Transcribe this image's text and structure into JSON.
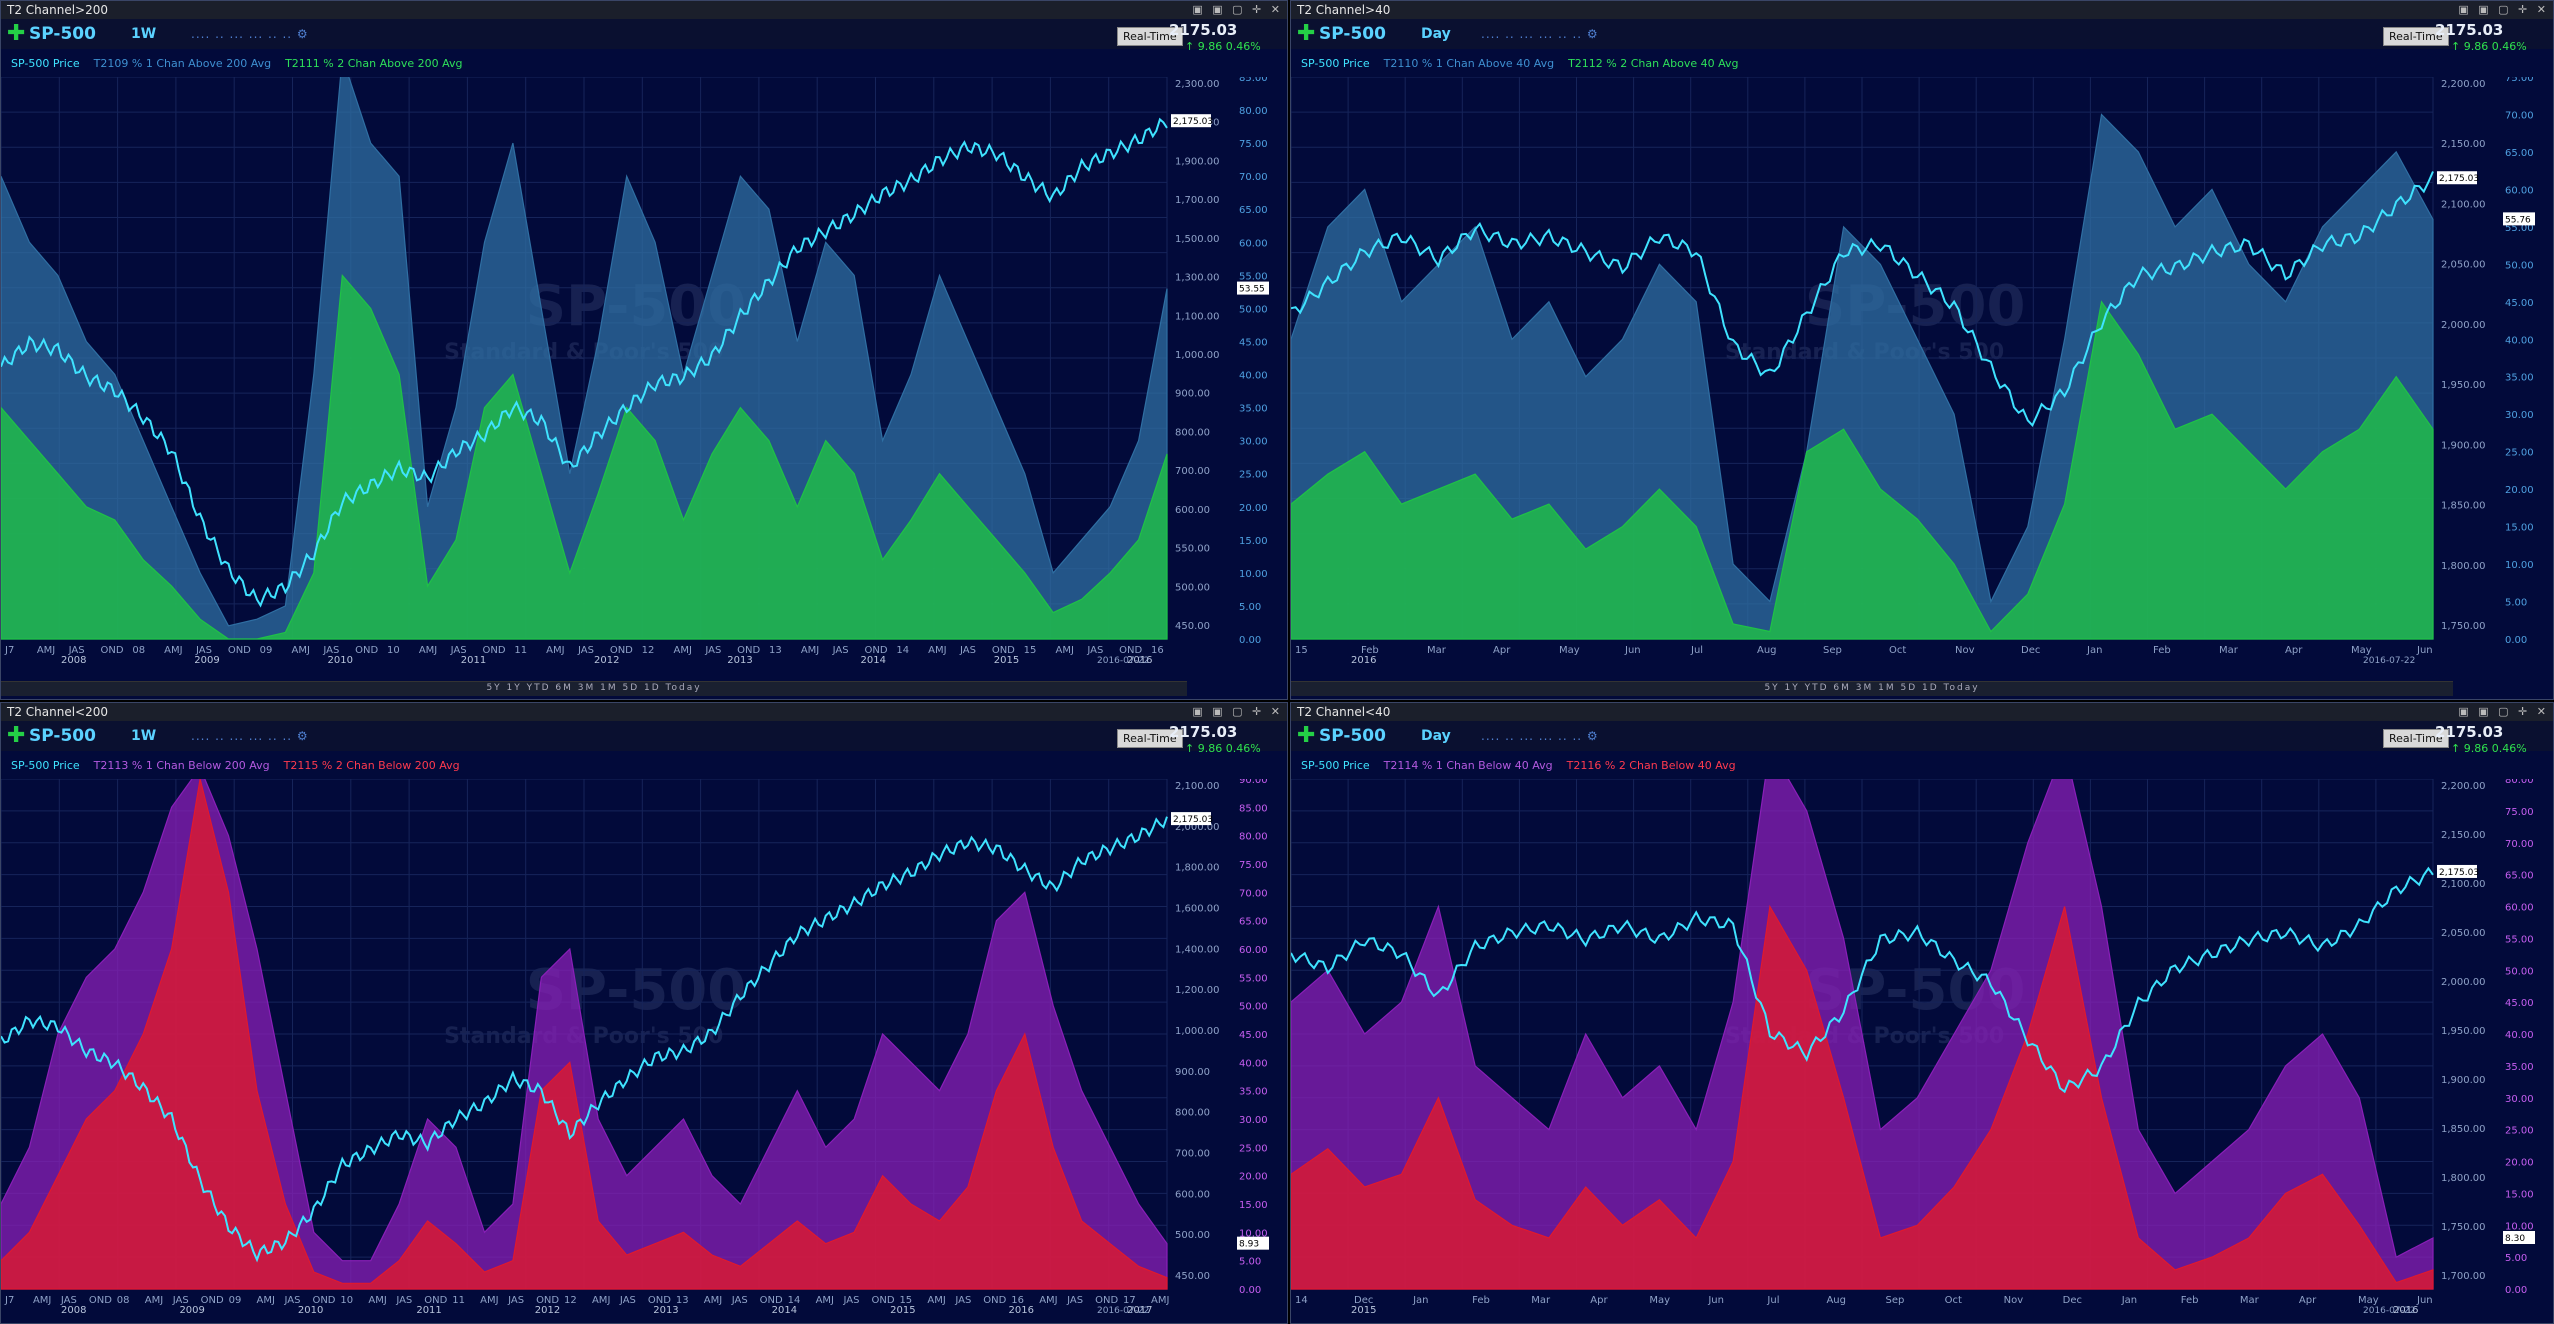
{
  "colors": {
    "bg": "#020a3a",
    "price": "#3fe3ff",
    "above1": "#2f6fa3",
    "above2": "#1fc246",
    "below1": "#8a1fb8",
    "below2": "#e0192e",
    "axis": "#8fa2c8"
  },
  "panels": [
    {
      "title": "T2 Channel>200",
      "symbol": "SP-500",
      "interval": "1W",
      "price_now": "2175.03",
      "change": "9.86",
      "change_pct": "0.46%",
      "realtime": "Real-Time",
      "legend": [
        "SP-500 Price",
        "T2109 % 1 Chan Above 200 Avg",
        "T2111 % 2 Chan Above 200 Avg"
      ],
      "watermark": [
        "SP-500",
        "Standard & Poor's 500"
      ],
      "price_axis": [
        "2,300.00",
        "2,100.00",
        "1,900.00",
        "1,700.00",
        "1,500.00",
        "1,300.00",
        "1,100.00",
        "1,000.00",
        "900.00",
        "800.00",
        "700.00",
        "600.00",
        "550.00",
        "500.00",
        "450.00"
      ],
      "pct_axis": [
        "85.00",
        "80.00",
        "75.00",
        "70.00",
        "65.00",
        "60.00",
        "55.00",
        "50.00",
        "45.00",
        "40.00",
        "35.00",
        "30.00",
        "25.00",
        "20.00",
        "15.00",
        "10.00",
        "5.00",
        "0.00"
      ],
      "price_tag": "2,175.03",
      "pct_tag": "53.55",
      "x_labels": [
        "J7",
        "AMJ",
        "JAS",
        "OND",
        "08",
        "AMJ",
        "JAS",
        "OND",
        "09",
        "AMJ",
        "JAS",
        "OND",
        "10",
        "AMJ",
        "JAS",
        "OND",
        "11",
        "AMJ",
        "JAS",
        "OND",
        "12",
        "AMJ",
        "JAS",
        "OND",
        "13",
        "AMJ",
        "JAS",
        "OND",
        "14",
        "AMJ",
        "JAS",
        "OND",
        "15",
        "AMJ",
        "JAS",
        "OND",
        "16"
      ],
      "years": [
        "2008",
        "2009",
        "2010",
        "2011",
        "2012",
        "2013",
        "2014",
        "2015",
        "2016"
      ],
      "date_tag": "2016-07-22"
    },
    {
      "title": "T2 Channel>40",
      "symbol": "SP-500",
      "interval": "Day",
      "price_now": "2175.03",
      "change": "9.86",
      "change_pct": "0.46%",
      "realtime": "Real-Time",
      "legend": [
        "SP-500 Price",
        "T2110 % 1 Chan Above 40 Avg",
        "T2112 % 2 Chan Above 40 Avg"
      ],
      "watermark": [
        "SP-500",
        "Standard & Poor's 500"
      ],
      "price_axis": [
        "2,200.00",
        "2,150.00",
        "2,100.00",
        "2,050.00",
        "2,000.00",
        "1,950.00",
        "1,900.00",
        "1,850.00",
        "1,800.00",
        "1,750.00"
      ],
      "pct_axis": [
        "75.00",
        "70.00",
        "65.00",
        "60.00",
        "55.00",
        "50.00",
        "45.00",
        "40.00",
        "35.00",
        "30.00",
        "25.00",
        "20.00",
        "15.00",
        "10.00",
        "5.00",
        "0.00"
      ],
      "price_tag": "2,175.03",
      "pct_tag": "55.76",
      "x_labels": [
        "15",
        "Feb",
        "Mar",
        "Apr",
        "May",
        "Jun",
        "Jul",
        "Aug",
        "Sep",
        "Oct",
        "Nov",
        "Dec",
        "Jan",
        "Feb",
        "Mar",
        "Apr",
        "May",
        "Jun"
      ],
      "years": [
        "2016"
      ],
      "date_tag": "2016-07-22"
    },
    {
      "title": "T2 Channel<200",
      "symbol": "SP-500",
      "interval": "1W",
      "price_now": "2175.03",
      "change": "9.86",
      "change_pct": "0.46%",
      "realtime": "Real-Time",
      "legend": [
        "SP-500 Price",
        "T2113 % 1 Chan Below 200 Avg",
        "T2115 % 2 Chan Below 200 Avg"
      ],
      "watermark": [
        "SP-500",
        "Standard & Poor's 500"
      ],
      "price_axis": [
        "2,100.00",
        "2,000.00",
        "1,800.00",
        "1,600.00",
        "1,400.00",
        "1,200.00",
        "1,000.00",
        "900.00",
        "800.00",
        "700.00",
        "600.00",
        "500.00",
        "450.00"
      ],
      "pct_axis": [
        "90.00",
        "85.00",
        "80.00",
        "75.00",
        "70.00",
        "65.00",
        "60.00",
        "55.00",
        "50.00",
        "45.00",
        "40.00",
        "35.00",
        "30.00",
        "25.00",
        "20.00",
        "15.00",
        "10.00",
        "5.00",
        "0.00"
      ],
      "price_tag": "2,175.03",
      "pct_tag": "8.93",
      "x_labels": [
        "J7",
        "AMJ",
        "JAS",
        "OND",
        "08",
        "AMJ",
        "JAS",
        "OND",
        "09",
        "AMJ",
        "JAS",
        "OND",
        "10",
        "AMJ",
        "JAS",
        "OND",
        "11",
        "AMJ",
        "JAS",
        "OND",
        "12",
        "AMJ",
        "JAS",
        "OND",
        "13",
        "AMJ",
        "JAS",
        "OND",
        "14",
        "AMJ",
        "JAS",
        "OND",
        "15",
        "AMJ",
        "JAS",
        "OND",
        "16",
        "AMJ",
        "JAS",
        "OND",
        "17",
        "AMJ"
      ],
      "years": [
        "2008",
        "2009",
        "2010",
        "2011",
        "2012",
        "2013",
        "2014",
        "2015",
        "2016",
        "2017"
      ],
      "date_tag": "2016-07-22"
    },
    {
      "title": "T2 Channel<40",
      "symbol": "SP-500",
      "interval": "Day",
      "price_now": "2175.03",
      "change": "9.86",
      "change_pct": "0.46%",
      "realtime": "Real-Time",
      "legend": [
        "SP-500 Price",
        "T2114 % 1 Chan Below 40 Avg",
        "T2116 % 2 Chan Below 40 Avg"
      ],
      "watermark": [
        "SP-500",
        "Standard & Poor's 500"
      ],
      "price_axis": [
        "2,200.00",
        "2,150.00",
        "2,100.00",
        "2,050.00",
        "2,000.00",
        "1,950.00",
        "1,900.00",
        "1,850.00",
        "1,800.00",
        "1,750.00",
        "1,700.00"
      ],
      "pct_axis": [
        "80.00",
        "75.00",
        "70.00",
        "65.00",
        "60.00",
        "55.00",
        "50.00",
        "45.00",
        "40.00",
        "35.00",
        "30.00",
        "25.00",
        "20.00",
        "15.00",
        "10.00",
        "5.00",
        "0.00"
      ],
      "price_tag": "2,175.03",
      "pct_tag": "8.30",
      "x_labels": [
        "14",
        "Dec",
        "Jan",
        "Feb",
        "Mar",
        "Apr",
        "May",
        "Jun",
        "Jul",
        "Aug",
        "Sep",
        "Oct",
        "Nov",
        "Dec",
        "Jan",
        "Feb",
        "Mar",
        "Apr",
        "May",
        "Jun"
      ],
      "years": [
        "2015",
        "2016"
      ],
      "date_tag": "2016-07-22"
    }
  ],
  "chart_data": [
    {
      "type": "area",
      "title": "",
      "series": [
        {
          "name": "SP-500 Price",
          "kind": "line",
          "values": [
            1450,
            1520,
            1500,
            1420,
            1380,
            1300,
            1200,
            1000,
            850,
            760,
            800,
            900,
            1050,
            1100,
            1150,
            1120,
            1200,
            1250,
            1330,
            1290,
            1150,
            1250,
            1330,
            1400,
            1420,
            1480,
            1600,
            1700,
            1800,
            1850,
            1900,
            1960,
            2000,
            2060,
            2100,
            2080,
            2010,
            1950,
            2040,
            2080,
            2120,
            2175
          ]
        },
        {
          "name": "T2109 % 1 Chan Above 200 Avg",
          "values": [
            70,
            60,
            55,
            45,
            40,
            30,
            20,
            10,
            2,
            3,
            5,
            40,
            88,
            75,
            70,
            20,
            35,
            60,
            75,
            50,
            25,
            45,
            70,
            60,
            40,
            55,
            70,
            65,
            45,
            60,
            55,
            30,
            40,
            55,
            45,
            35,
            25,
            10,
            15,
            20,
            30,
            53
          ]
        },
        {
          "name": "T2111 % 2 Chan Above 200 Avg",
          "values": [
            35,
            30,
            25,
            20,
            18,
            12,
            8,
            3,
            0,
            0,
            1,
            10,
            55,
            50,
            40,
            8,
            15,
            35,
            40,
            25,
            10,
            22,
            35,
            30,
            18,
            28,
            35,
            30,
            20,
            30,
            25,
            12,
            18,
            25,
            20,
            15,
            10,
            4,
            6,
            10,
            15,
            28
          ]
        }
      ]
    },
    {
      "type": "area",
      "title": "",
      "series": [
        {
          "name": "SP-500 Price",
          "kind": "line",
          "values": [
            2000,
            2040,
            2080,
            2100,
            2070,
            2110,
            2090,
            2100,
            2080,
            2060,
            2100,
            2080,
            1960,
            1920,
            2000,
            2080,
            2090,
            2050,
            2010,
            1930,
            1860,
            1900,
            1990,
            2050,
            2060,
            2080,
            2090,
            2050,
            2090,
            2100,
            2140,
            2175
          ]
        },
        {
          "name": "T2110 % 1 Chan Above 40 Avg",
          "values": [
            40,
            55,
            60,
            45,
            50,
            55,
            40,
            45,
            35,
            40,
            50,
            45,
            10,
            5,
            25,
            55,
            50,
            40,
            30,
            5,
            15,
            40,
            70,
            65,
            55,
            60,
            50,
            45,
            55,
            60,
            65,
            56
          ]
        },
        {
          "name": "T2112 % 2 Chan Above 40 Avg",
          "values": [
            18,
            22,
            25,
            18,
            20,
            22,
            16,
            18,
            12,
            15,
            20,
            15,
            2,
            1,
            25,
            28,
            20,
            16,
            10,
            1,
            6,
            18,
            45,
            38,
            28,
            30,
            25,
            20,
            25,
            28,
            35,
            28
          ]
        }
      ]
    },
    {
      "type": "area",
      "title": "",
      "series": [
        {
          "name": "SP-500 Price",
          "kind": "line",
          "values": [
            1450,
            1520,
            1500,
            1420,
            1380,
            1300,
            1200,
            1000,
            850,
            760,
            800,
            900,
            1050,
            1100,
            1150,
            1120,
            1200,
            1250,
            1330,
            1290,
            1150,
            1250,
            1330,
            1400,
            1420,
            1480,
            1600,
            1700,
            1800,
            1850,
            1900,
            1960,
            2000,
            2060,
            2100,
            2080,
            2010,
            1950,
            2040,
            2080,
            2120,
            2175
          ]
        },
        {
          "name": "T2113 % 1 Chan Below 200 Avg",
          "values": [
            15,
            25,
            45,
            55,
            60,
            70,
            85,
            92,
            80,
            60,
            35,
            10,
            5,
            5,
            15,
            30,
            25,
            10,
            15,
            55,
            60,
            30,
            20,
            25,
            30,
            20,
            15,
            25,
            35,
            25,
            30,
            45,
            40,
            35,
            45,
            65,
            70,
            50,
            35,
            25,
            15,
            8
          ]
        },
        {
          "name": "T2115 % 2 Chan Below 200 Avg",
          "values": [
            5,
            10,
            20,
            30,
            35,
            45,
            60,
            90,
            70,
            35,
            15,
            3,
            1,
            1,
            5,
            12,
            8,
            3,
            5,
            35,
            40,
            12,
            6,
            8,
            10,
            6,
            4,
            8,
            12,
            8,
            10,
            20,
            15,
            12,
            18,
            35,
            45,
            25,
            12,
            8,
            4,
            2
          ]
        }
      ]
    },
    {
      "type": "area",
      "title": "",
      "series": [
        {
          "name": "SP-500 Price",
          "kind": "line",
          "values": [
            2060,
            2040,
            2080,
            2060,
            2000,
            2070,
            2090,
            2100,
            2080,
            2100,
            2080,
            2110,
            2100,
            1950,
            1920,
            1980,
            2080,
            2090,
            2050,
            2020,
            1940,
            1870,
            1900,
            1990,
            2040,
            2060,
            2080,
            2090,
            2070,
            2100,
            2150,
            2175
          ]
        },
        {
          "name": "T2114 % 1 Chan Below 40 Avg",
          "values": [
            45,
            50,
            40,
            45,
            60,
            35,
            30,
            25,
            40,
            30,
            35,
            25,
            45,
            85,
            75,
            55,
            25,
            30,
            40,
            50,
            70,
            85,
            60,
            25,
            15,
            20,
            25,
            35,
            40,
            30,
            5,
            8
          ]
        },
        {
          "name": "T2116 % 2 Chan Below 40 Avg",
          "values": [
            18,
            22,
            16,
            18,
            30,
            14,
            10,
            8,
            16,
            10,
            14,
            8,
            20,
            60,
            50,
            30,
            8,
            10,
            16,
            25,
            40,
            60,
            30,
            8,
            3,
            5,
            8,
            15,
            18,
            10,
            1,
            3
          ]
        }
      ]
    }
  ]
}
